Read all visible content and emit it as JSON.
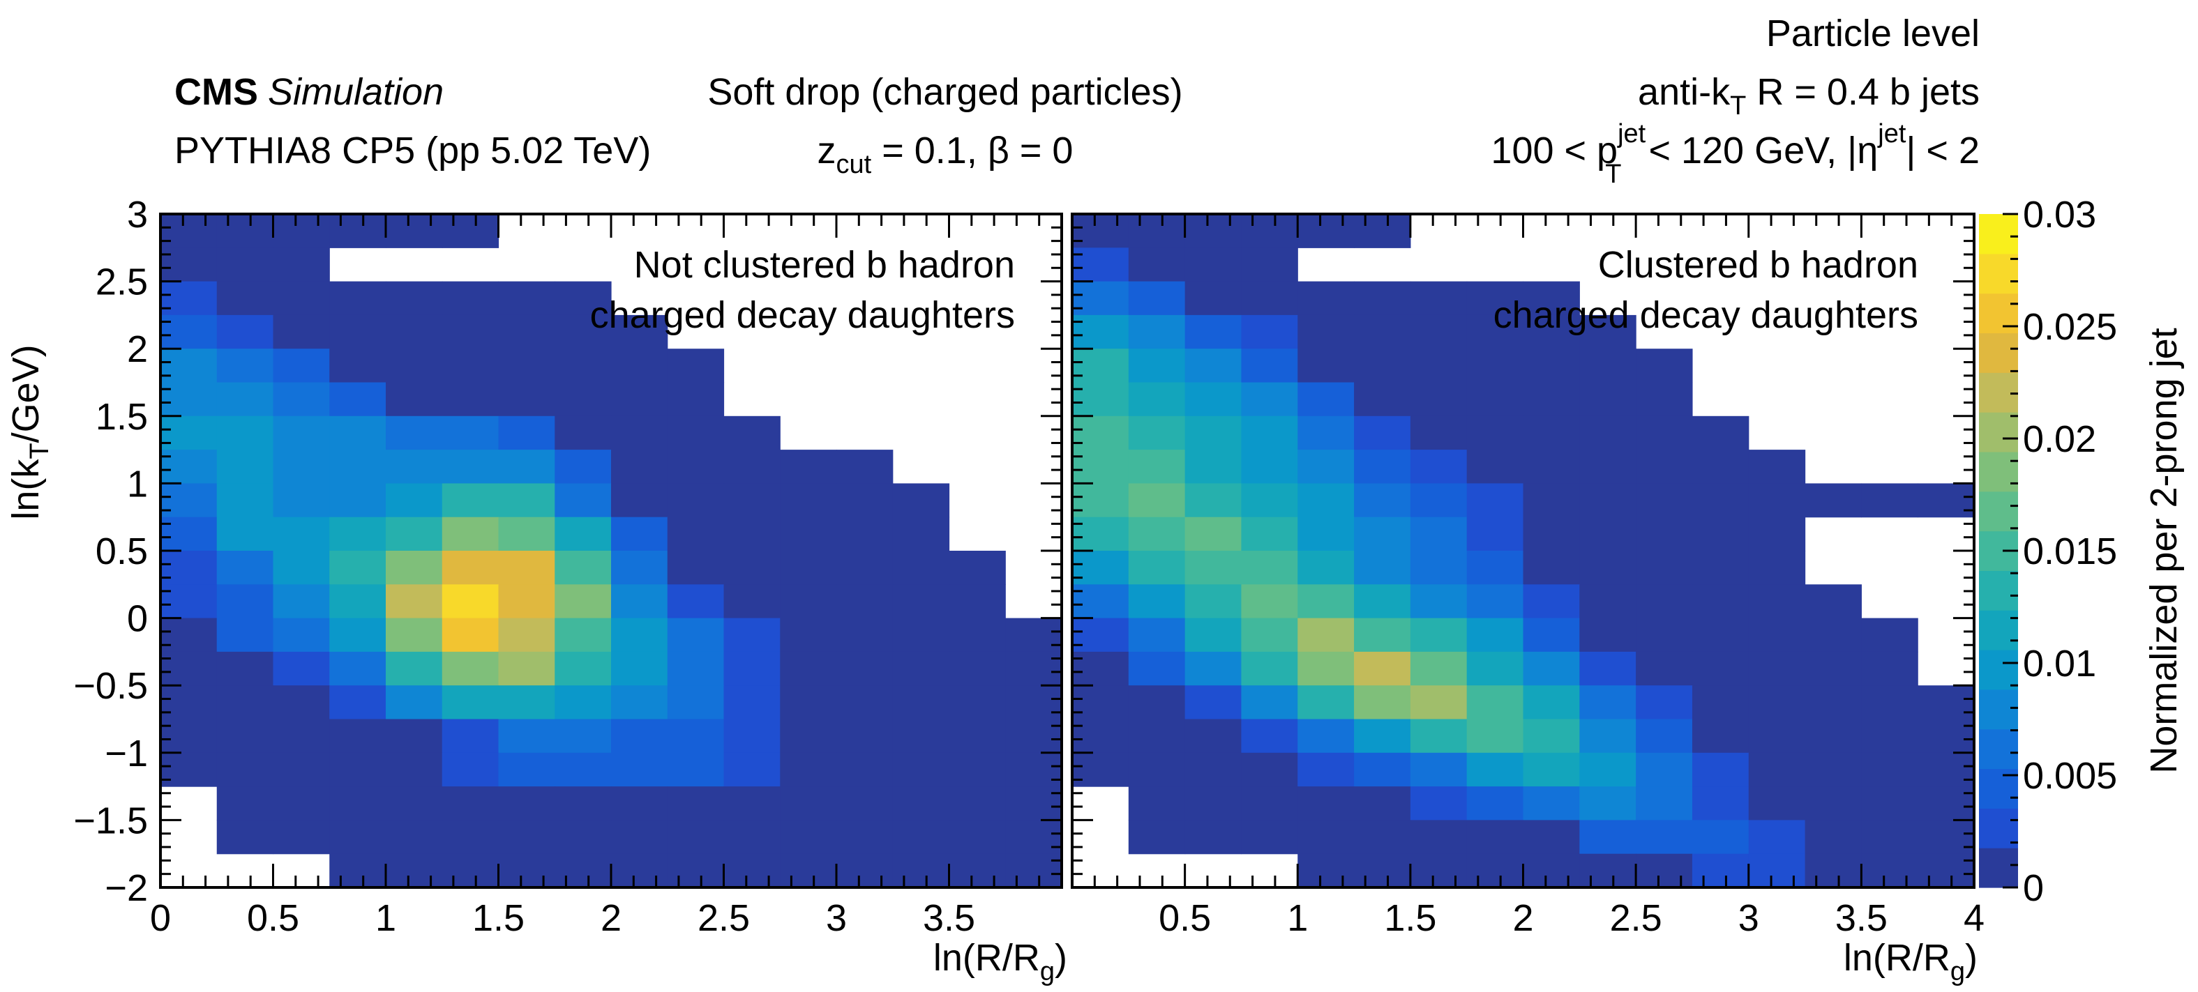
{
  "header": {
    "cms": "CMS",
    "simulation": "Simulation",
    "generator": "PYTHIA8 CP5 (pp 5.02 TeV)",
    "algorithm": "Soft drop (charged particles)",
    "zcut_sym": "z",
    "zcut_sub": "cut",
    "zcut_rest": " = 0.1, β = 0",
    "level": "Particle level",
    "jet_pre": "anti-k",
    "jet_sub": "T",
    "jet_post": " R = 0.4 b jets",
    "kin_pre": "100 < p",
    "kin_sub": "T",
    "kin_sup": "jet",
    "kin_mid": " < 120 GeV, |η",
    "kin_sup2": "jet",
    "kin_post": "| < 2"
  },
  "axes": {
    "ylabel_pre": "ln(k",
    "ylabel_sub": "T",
    "ylabel_post": "/GeV)",
    "xlabel_pre": "ln(R/R",
    "xlabel_sub": "g",
    "xlabel_post": ")",
    "zlabel": "Normalized per 2-prong jet"
  },
  "chart_data": {
    "type": "heatmap",
    "x_range": [
      0,
      4
    ],
    "y_range": [
      -2,
      3
    ],
    "z_range": [
      0,
      0.03
    ],
    "x_ticks": [
      {
        "v": 0,
        "label": "0"
      },
      {
        "v": 0.5,
        "label": "0.5"
      },
      {
        "v": 1,
        "label": "1"
      },
      {
        "v": 1.5,
        "label": "1.5"
      },
      {
        "v": 2,
        "label": "2"
      },
      {
        "v": 2.5,
        "label": "2.5"
      },
      {
        "v": 3,
        "label": "3"
      },
      {
        "v": 3.5,
        "label": "3.5"
      },
      {
        "v": 4,
        "label": "4"
      }
    ],
    "y_ticks": [
      {
        "v": -2,
        "label": "−2"
      },
      {
        "v": -1.5,
        "label": "−1.5"
      },
      {
        "v": -1,
        "label": "−1"
      },
      {
        "v": -0.5,
        "label": "−0.5"
      },
      {
        "v": 0,
        "label": "0"
      },
      {
        "v": 0.5,
        "label": "0.5"
      },
      {
        "v": 1,
        "label": "1"
      },
      {
        "v": 1.5,
        "label": "1.5"
      },
      {
        "v": 2,
        "label": "2"
      },
      {
        "v": 2.5,
        "label": "2.5"
      },
      {
        "v": 3,
        "label": "3"
      }
    ],
    "z_ticks": [
      {
        "v": 0,
        "label": "0"
      },
      {
        "v": 0.005,
        "label": "0.005"
      },
      {
        "v": 0.01,
        "label": "0.01"
      },
      {
        "v": 0.015,
        "label": "0.015"
      },
      {
        "v": 0.02,
        "label": "0.02"
      },
      {
        "v": 0.025,
        "label": "0.025"
      },
      {
        "v": 0.03,
        "label": "0.03"
      }
    ],
    "palette": [
      "#2a3b9a",
      "#1f4fd1",
      "#1660d8",
      "#1372d9",
      "#0f86d4",
      "#0b98ca",
      "#13a5bc",
      "#26b0ad",
      "#41b89c",
      "#5fbd8b",
      "#7fbf7a",
      "#a0be6b",
      "#c2bb5a",
      "#e0b83f",
      "#f2c431",
      "#f8d92a",
      "#f9ef1c"
    ],
    "bins": {
      "nx": 16,
      "ny": 20,
      "x_min": 0,
      "x_max": 4,
      "y_min": -2,
      "y_max": 3
    },
    "panels": [
      {
        "name": "not-clustered",
        "label_line1": "Not clustered b hadron",
        "label_line2": "charged decay daughters",
        "x_tick_labels_start": 0,
        "rows_top_to_bottom": [
          [
            1,
            1,
            1,
            1,
            1,
            1,
            0,
            0,
            0,
            0,
            0,
            0,
            0,
            0,
            0,
            0
          ],
          [
            1,
            1,
            1,
            0,
            0,
            0,
            0,
            0,
            0,
            0,
            0,
            0,
            0,
            0,
            0,
            0
          ],
          [
            2,
            1,
            1,
            1,
            1,
            1,
            1,
            1,
            0,
            0,
            0,
            0,
            0,
            0,
            0,
            0
          ],
          [
            3,
            2,
            1,
            1,
            1,
            1,
            1,
            1,
            1,
            0,
            0,
            0,
            0,
            0,
            0,
            0
          ],
          [
            5,
            4,
            3,
            1,
            1,
            1,
            1,
            1,
            1,
            1,
            0,
            0,
            0,
            0,
            0,
            0
          ],
          [
            5,
            5,
            4,
            3,
            1,
            1,
            1,
            1,
            1,
            1,
            0,
            0,
            0,
            0,
            0,
            0
          ],
          [
            6,
            6,
            5,
            5,
            4,
            4,
            3,
            1,
            1,
            1,
            1,
            0,
            0,
            0,
            0,
            0
          ],
          [
            5,
            6,
            5,
            5,
            5,
            5,
            5,
            3,
            1,
            1,
            1,
            1,
            1,
            0,
            0,
            0
          ],
          [
            4,
            6,
            5,
            5,
            6,
            8,
            8,
            4,
            1,
            1,
            1,
            1,
            1,
            1,
            0,
            0
          ],
          [
            3,
            6,
            6,
            7,
            8,
            11,
            10,
            7,
            3,
            1,
            1,
            1,
            1,
            1,
            0,
            0
          ],
          [
            2,
            4,
            6,
            8,
            11,
            14,
            14,
            9,
            4,
            1,
            1,
            1,
            1,
            1,
            1,
            0
          ],
          [
            2,
            3,
            5,
            7,
            13,
            16,
            14,
            11,
            5,
            2,
            1,
            1,
            1,
            1,
            1,
            0
          ],
          [
            1,
            3,
            4,
            6,
            11,
            15,
            13,
            9,
            6,
            4,
            2,
            1,
            1,
            1,
            1,
            1
          ],
          [
            1,
            1,
            2,
            4,
            8,
            11,
            12,
            8,
            6,
            4,
            2,
            1,
            1,
            1,
            1,
            1
          ],
          [
            1,
            1,
            1,
            2,
            5,
            7,
            7,
            6,
            5,
            4,
            2,
            1,
            1,
            1,
            1,
            1
          ],
          [
            1,
            1,
            1,
            1,
            1,
            2,
            4,
            4,
            3,
            3,
            2,
            1,
            1,
            1,
            1,
            1
          ],
          [
            1,
            1,
            1,
            1,
            1,
            2,
            3,
            3,
            3,
            3,
            2,
            1,
            1,
            1,
            1,
            1
          ],
          [
            0,
            1,
            1,
            1,
            1,
            1,
            1,
            1,
            1,
            1,
            1,
            1,
            1,
            1,
            1,
            1
          ],
          [
            0,
            1,
            1,
            1,
            1,
            1,
            1,
            1,
            1,
            1,
            1,
            1,
            1,
            1,
            1,
            1
          ],
          [
            0,
            0,
            0,
            1,
            1,
            1,
            1,
            1,
            1,
            1,
            1,
            1,
            1,
            1,
            1,
            1
          ]
        ]
      },
      {
        "name": "clustered",
        "label_line1": "Clustered b hadron",
        "label_line2": "charged decay daughters",
        "x_tick_labels_start": 0.5,
        "rows_top_to_bottom": [
          [
            1,
            1,
            1,
            1,
            1,
            1,
            0,
            0,
            0,
            0,
            0,
            0,
            0,
            0,
            0,
            0
          ],
          [
            2,
            1,
            1,
            1,
            0,
            0,
            0,
            0,
            0,
            0,
            0,
            0,
            0,
            0,
            0,
            0
          ],
          [
            4,
            3,
            1,
            1,
            1,
            1,
            1,
            1,
            1,
            0,
            0,
            0,
            0,
            0,
            0,
            0
          ],
          [
            6,
            5,
            3,
            2,
            1,
            1,
            1,
            1,
            1,
            1,
            0,
            0,
            0,
            0,
            0,
            0
          ],
          [
            8,
            6,
            5,
            3,
            1,
            1,
            1,
            1,
            1,
            1,
            1,
            0,
            0,
            0,
            0,
            0
          ],
          [
            8,
            7,
            6,
            5,
            3,
            1,
            1,
            1,
            1,
            1,
            1,
            0,
            0,
            0,
            0,
            0
          ],
          [
            9,
            8,
            7,
            6,
            4,
            2,
            1,
            1,
            1,
            1,
            1,
            1,
            0,
            0,
            0,
            0
          ],
          [
            9,
            9,
            7,
            6,
            5,
            3,
            2,
            1,
            1,
            1,
            1,
            1,
            1,
            0,
            0,
            0
          ],
          [
            9,
            10,
            8,
            7,
            6,
            4,
            3,
            2,
            1,
            1,
            1,
            1,
            1,
            1,
            1,
            1
          ],
          [
            8,
            9,
            10,
            8,
            6,
            5,
            4,
            2,
            1,
            1,
            1,
            1,
            1,
            0,
            0,
            0
          ],
          [
            6,
            8,
            9,
            9,
            7,
            5,
            4,
            3,
            1,
            1,
            1,
            1,
            1,
            0,
            0,
            0
          ],
          [
            4,
            6,
            8,
            10,
            9,
            7,
            5,
            4,
            2,
            1,
            1,
            1,
            1,
            1,
            0,
            0
          ],
          [
            2,
            4,
            7,
            9,
            12,
            9,
            8,
            6,
            3,
            1,
            1,
            1,
            1,
            1,
            1,
            0
          ],
          [
            1,
            3,
            5,
            8,
            11,
            13,
            10,
            7,
            5,
            2,
            1,
            1,
            1,
            1,
            1,
            0
          ],
          [
            1,
            1,
            2,
            5,
            8,
            11,
            12,
            9,
            7,
            4,
            2,
            1,
            1,
            1,
            1,
            1
          ],
          [
            1,
            1,
            1,
            2,
            4,
            6,
            8,
            9,
            8,
            5,
            3,
            1,
            1,
            1,
            1,
            1
          ],
          [
            1,
            1,
            1,
            1,
            2,
            3,
            4,
            6,
            7,
            6,
            4,
            2,
            1,
            1,
            1,
            1
          ],
          [
            0,
            1,
            1,
            1,
            1,
            1,
            2,
            3,
            4,
            5,
            4,
            2,
            1,
            1,
            1,
            1
          ],
          [
            0,
            1,
            1,
            1,
            1,
            1,
            1,
            1,
            1,
            3,
            3,
            3,
            2,
            1,
            1,
            1
          ],
          [
            0,
            0,
            0,
            0,
            1,
            1,
            1,
            1,
            1,
            1,
            1,
            2,
            2,
            1,
            1,
            1
          ]
        ]
      }
    ]
  }
}
